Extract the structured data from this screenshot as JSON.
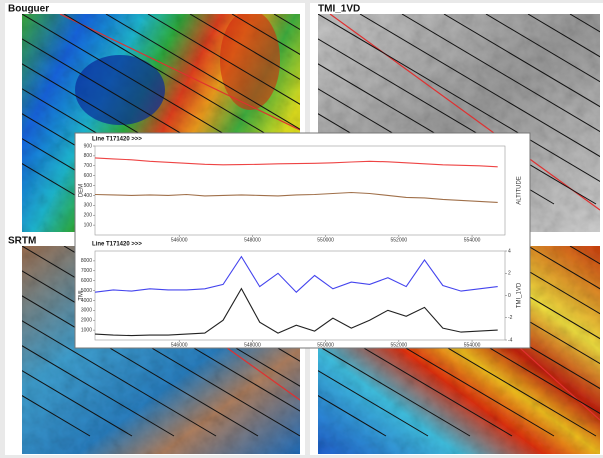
{
  "panels": [
    {
      "title": "Bouguer"
    },
    {
      "title": "TMI_1VD"
    },
    {
      "title": "SRTM"
    }
  ],
  "chart_data": [
    {
      "type": "line",
      "title": "Line T171420 >>>",
      "y_label": "DEM",
      "y2_label": "ALTITUDE",
      "x": [
        543700,
        544200,
        544700,
        545200,
        545700,
        546200,
        546700,
        547200,
        547700,
        548200,
        548700,
        549200,
        549700,
        550200,
        550700,
        551200,
        551700,
        552200,
        552700,
        553200,
        553700,
        554200,
        554700
      ],
      "series": [
        {
          "color": "#ee4444",
          "values": [
            780,
            770,
            760,
            745,
            735,
            725,
            715,
            710,
            712,
            715,
            720,
            722,
            725,
            730,
            738,
            745,
            740,
            730,
            720,
            710,
            705,
            700,
            690
          ]
        },
        {
          "color": "#a0704a",
          "values": [
            410,
            405,
            400,
            405,
            400,
            410,
            395,
            400,
            405,
            400,
            395,
            405,
            410,
            420,
            430,
            420,
            400,
            380,
            375,
            360,
            350,
            340,
            330
          ]
        }
      ],
      "xlim": [
        543700,
        554900
      ],
      "xticks": [
        546000,
        548000,
        550000,
        552000,
        554000
      ],
      "ylim": [
        0,
        900
      ],
      "yticks": [
        100,
        200,
        300,
        400,
        500,
        600,
        700,
        800,
        900
      ]
    },
    {
      "type": "line",
      "title": "Line T171420 >>>",
      "y_label": "TMI",
      "y2_label": "TMI_1VD",
      "x": [
        543700,
        544200,
        544700,
        545200,
        545700,
        546200,
        546700,
        547200,
        547700,
        548200,
        548700,
        549200,
        549700,
        550200,
        550700,
        551200,
        551700,
        552200,
        552700,
        553200,
        553700,
        554200,
        554700
      ],
      "series": [
        {
          "color": "#4444ee",
          "axis": "y2",
          "values": [
            0.3,
            0.5,
            0.4,
            0.6,
            0.5,
            0.5,
            0.6,
            1.0,
            3.5,
            0.8,
            2.0,
            0.3,
            1.8,
            0.6,
            1.2,
            1.0,
            1.6,
            0.8,
            3.2,
            0.9,
            0.4,
            0.6,
            0.8
          ]
        },
        {
          "color": "#222222",
          "values": [
            600,
            500,
            450,
            500,
            500,
            600,
            700,
            2000,
            5200,
            1800,
            700,
            1500,
            900,
            2200,
            1200,
            2000,
            3000,
            2400,
            3300,
            1200,
            800,
            900,
            1000
          ]
        }
      ],
      "xlim": [
        543700,
        554900
      ],
      "xticks": [
        546000,
        548000,
        550000,
        552000,
        554000
      ],
      "ylim": [
        0,
        9000
      ],
      "yticks": [
        1000,
        2000,
        3000,
        4000,
        5000,
        6000,
        7000,
        8000
      ],
      "y2lim": [
        -4,
        4
      ],
      "y2ticks": [
        -4,
        -2,
        0,
        2,
        4
      ]
    }
  ]
}
